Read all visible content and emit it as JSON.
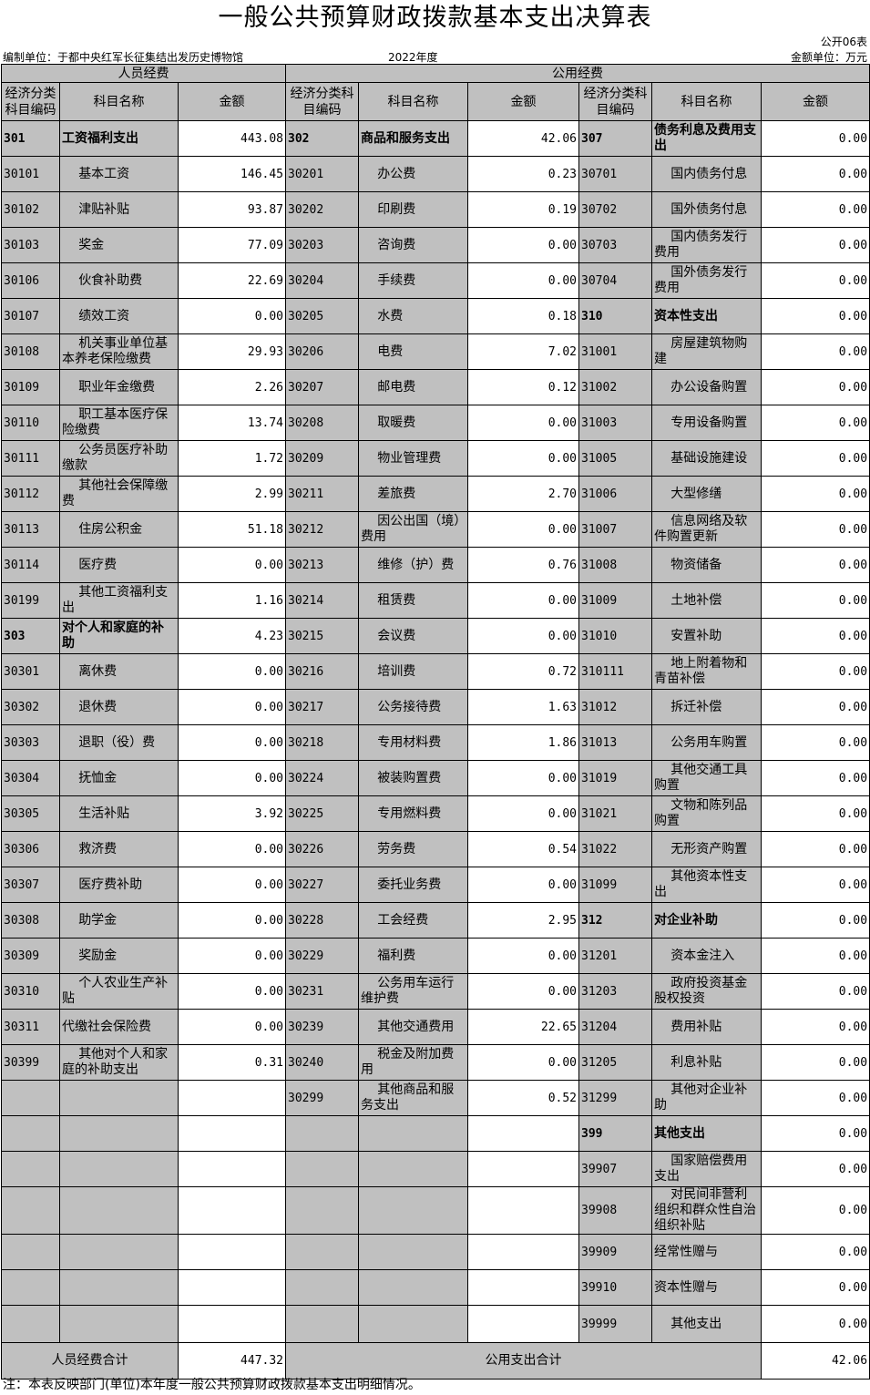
{
  "title": "一般公共预算财政拨款基本支出决算表",
  "form_no": "公开06表",
  "org": "编制单位：于都中央红军长征集结出发历史博物馆",
  "year": "2022年度",
  "unit": "金额单位：万元",
  "groups": {
    "personnel": "人员经费",
    "public": "公用经费"
  },
  "headers": {
    "code_left": "经济分类科目编码",
    "code_mid": "经济分类科目编码",
    "code_right": "经济分类科目编码",
    "name": "科目名称",
    "amount": "金额"
  },
  "rows": [
    {
      "l": [
        "301",
        "工资福利支出",
        "443.08"
      ],
      "m": [
        "302",
        "商品和服务支出",
        "42.06"
      ],
      "r": [
        "307",
        "债务利息及费用支出",
        "0.00"
      ],
      "lb": 1,
      "mb": 1,
      "rb": 1
    },
    {
      "l": [
        "30101",
        "基本工资",
        "146.45"
      ],
      "m": [
        "30201",
        "办公费",
        "0.23"
      ],
      "r": [
        "30701",
        "国内债务付息",
        "0.00"
      ]
    },
    {
      "l": [
        "30102",
        "津贴补贴",
        "93.87"
      ],
      "m": [
        "30202",
        "印刷费",
        "0.19"
      ],
      "r": [
        "30702",
        "国外债务付息",
        "0.00"
      ]
    },
    {
      "l": [
        "30103",
        "奖金",
        "77.09"
      ],
      "m": [
        "30203",
        "咨询费",
        "0.00"
      ],
      "r": [
        "30703",
        "国内债务发行费用",
        "0.00"
      ]
    },
    {
      "l": [
        "30106",
        "伙食补助费",
        "22.69"
      ],
      "m": [
        "30204",
        "手续费",
        "0.00"
      ],
      "r": [
        "30704",
        "国外债务发行费用",
        "0.00"
      ]
    },
    {
      "l": [
        "30107",
        "绩效工资",
        "0.00"
      ],
      "m": [
        "30205",
        "水费",
        "0.18"
      ],
      "r": [
        "310",
        "资本性支出",
        "0.00"
      ],
      "rb": 1
    },
    {
      "l": [
        "30108",
        "机关事业单位基本养老保险缴费",
        "29.93"
      ],
      "m": [
        "30206",
        "电费",
        "7.02"
      ],
      "r": [
        "31001",
        "房屋建筑物购建",
        "0.00"
      ]
    },
    {
      "l": [
        "30109",
        "职业年金缴费",
        "2.26"
      ],
      "m": [
        "30207",
        "邮电费",
        "0.12"
      ],
      "r": [
        "31002",
        "办公设备购置",
        "0.00"
      ]
    },
    {
      "l": [
        "30110",
        "职工基本医疗保险缴费",
        "13.74"
      ],
      "m": [
        "30208",
        "取暖费",
        "0.00"
      ],
      "r": [
        "31003",
        "专用设备购置",
        "0.00"
      ]
    },
    {
      "l": [
        "30111",
        "公务员医疗补助缴款",
        "1.72"
      ],
      "m": [
        "30209",
        "物业管理费",
        "0.00"
      ],
      "r": [
        "31005",
        "基础设施建设",
        "0.00"
      ]
    },
    {
      "l": [
        "30112",
        "其他社会保障缴费",
        "2.99"
      ],
      "m": [
        "30211",
        "差旅费",
        "2.70"
      ],
      "r": [
        "31006",
        "大型修缮",
        "0.00"
      ]
    },
    {
      "l": [
        "30113",
        "住房公积金",
        "51.18"
      ],
      "m": [
        "30212",
        "因公出国（境）费用",
        "0.00"
      ],
      "r": [
        "31007",
        "信息网络及软件购置更新",
        "0.00"
      ]
    },
    {
      "l": [
        "30114",
        "医疗费",
        "0.00"
      ],
      "m": [
        "30213",
        "维修（护）费",
        "0.76"
      ],
      "r": [
        "31008",
        "物资储备",
        "0.00"
      ]
    },
    {
      "l": [
        "30199",
        "其他工资福利支出",
        "1.16"
      ],
      "m": [
        "30214",
        "租赁费",
        "0.00"
      ],
      "r": [
        "31009",
        "土地补偿",
        "0.00"
      ]
    },
    {
      "l": [
        "303",
        "对个人和家庭的补助",
        "4.23"
      ],
      "m": [
        "30215",
        "会议费",
        "0.00"
      ],
      "r": [
        "31010",
        "安置补助",
        "0.00"
      ],
      "lb": 1
    },
    {
      "l": [
        "30301",
        "离休费",
        "0.00"
      ],
      "m": [
        "30216",
        "培训费",
        "0.72"
      ],
      "r": [
        "310111",
        "地上附着物和青苗补偿",
        "0.00"
      ]
    },
    {
      "l": [
        "30302",
        "退休费",
        "0.00"
      ],
      "m": [
        "30217",
        "公务接待费",
        "1.63"
      ],
      "r": [
        "31012",
        "拆迁补偿",
        "0.00"
      ]
    },
    {
      "l": [
        "30303",
        "退职（役）费",
        "0.00"
      ],
      "m": [
        "30218",
        "专用材料费",
        "1.86"
      ],
      "r": [
        "31013",
        "公务用车购置",
        "0.00"
      ]
    },
    {
      "l": [
        "30304",
        "抚恤金",
        "0.00"
      ],
      "m": [
        "30224",
        "被装购置费",
        "0.00"
      ],
      "r": [
        "31019",
        "其他交通工具购置",
        "0.00"
      ]
    },
    {
      "l": [
        "30305",
        "生活补贴",
        "3.92"
      ],
      "m": [
        "30225",
        "专用燃料费",
        "0.00"
      ],
      "r": [
        "31021",
        "文物和陈列品购置",
        "0.00"
      ]
    },
    {
      "l": [
        "30306",
        "救济费",
        "0.00"
      ],
      "m": [
        "30226",
        "劳务费",
        "0.54"
      ],
      "r": [
        "31022",
        "无形资产购置",
        "0.00"
      ]
    },
    {
      "l": [
        "30307",
        "医疗费补助",
        "0.00"
      ],
      "m": [
        "30227",
        "委托业务费",
        "0.00"
      ],
      "r": [
        "31099",
        "其他资本性支出",
        "0.00"
      ]
    },
    {
      "l": [
        "30308",
        "助学金",
        "0.00"
      ],
      "m": [
        "30228",
        "工会经费",
        "2.95"
      ],
      "r": [
        "312",
        "对企业补助",
        "0.00"
      ],
      "rb": 1
    },
    {
      "l": [
        "30309",
        "奖励金",
        "0.00"
      ],
      "m": [
        "30229",
        "福利费",
        "0.00"
      ],
      "r": [
        "31201",
        "资本金注入",
        "0.00"
      ]
    },
    {
      "l": [
        "30310",
        "个人农业生产补贴",
        "0.00"
      ],
      "m": [
        "30231",
        "公务用车运行维护费",
        "0.00"
      ],
      "r": [
        "31203",
        "政府投资基金股权投资",
        "0.00"
      ]
    },
    {
      "l": [
        "30311",
        "代缴社会保险费",
        "0.00"
      ],
      "m": [
        "30239",
        "其他交通费用",
        "22.65"
      ],
      "r": [
        "31204",
        "费用补贴",
        "0.00"
      ]
    },
    {
      "l": [
        "30399",
        "其他对个人和家庭的补助支出",
        "0.31"
      ],
      "m": [
        "30240",
        "税金及附加费用",
        "0.00"
      ],
      "r": [
        "31205",
        "利息补贴",
        "0.00"
      ]
    },
    {
      "l": [
        "",
        "",
        ""
      ],
      "m": [
        "30299",
        "其他商品和服务支出",
        "0.52"
      ],
      "r": [
        "31299",
        "其他对企业补助",
        "0.00"
      ]
    },
    {
      "l": [
        "",
        "",
        ""
      ],
      "m": [
        "",
        "",
        ""
      ],
      "r": [
        "399",
        "其他支出",
        "0.00"
      ],
      "rb": 1
    },
    {
      "l": [
        "",
        "",
        ""
      ],
      "m": [
        "",
        "",
        ""
      ],
      "r": [
        "39907",
        "国家赔偿费用支出",
        "0.00"
      ]
    },
    {
      "l": [
        "",
        "",
        ""
      ],
      "m": [
        "",
        "",
        ""
      ],
      "r": [
        "39908",
        "对民间非营利组织和群众性自治组织补贴",
        "0.00"
      ]
    },
    {
      "l": [
        "",
        "",
        ""
      ],
      "m": [
        "",
        "",
        ""
      ],
      "r": [
        "39909",
        "经常性赠与",
        "0.00"
      ]
    },
    {
      "l": [
        "",
        "",
        ""
      ],
      "m": [
        "",
        "",
        ""
      ],
      "r": [
        "39910",
        "资本性赠与",
        "0.00"
      ]
    },
    {
      "l": [
        "",
        "",
        ""
      ],
      "m": [
        "",
        "",
        ""
      ],
      "r": [
        "39999",
        "其他支出",
        "0.00"
      ]
    }
  ],
  "totals": {
    "personnel_label": "人员经费合计",
    "personnel_amount": "447.32",
    "public_label": "公用支出合计",
    "public_amount": "42.06"
  },
  "note": "注：本表反映部门(单位)本年度一般公共预算财政拨款基本支出明细情况。"
}
